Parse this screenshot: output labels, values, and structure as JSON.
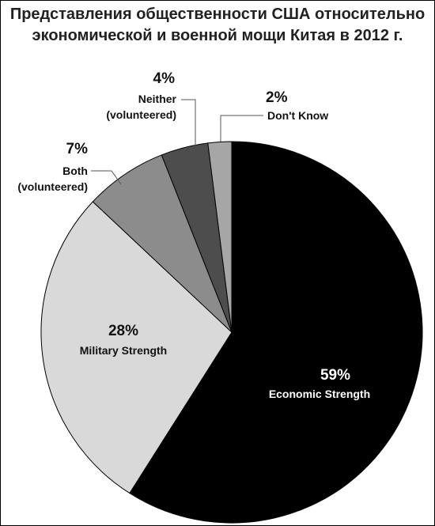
{
  "chart_data": {
    "type": "pie",
    "title": "Представления общественности США относительно экономической и военной мощи Китая в 2012 г.",
    "categories": [
      "Economic Strength",
      "Military Strength",
      "Both (volunteered)",
      "Neither (volunteered)",
      "Don't Know"
    ],
    "values": [
      59,
      28,
      7,
      4,
      2
    ],
    "value_labels": [
      "59%",
      "28%",
      "7%",
      "4%",
      "2%"
    ],
    "colors": [
      "#000000",
      "#d9d9d9",
      "#8c8c8c",
      "#4d4d4d",
      "#a6a6a6"
    ]
  }
}
